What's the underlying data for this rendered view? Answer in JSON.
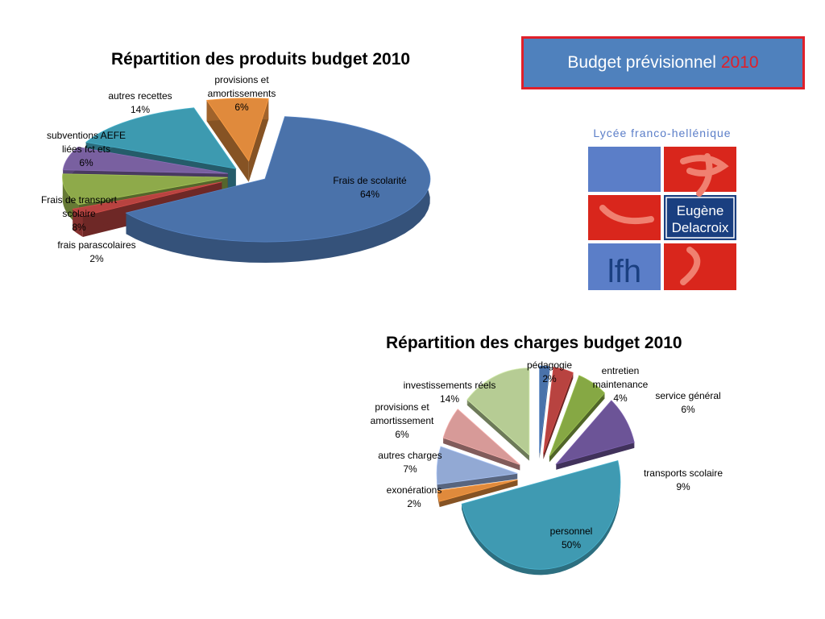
{
  "header": {
    "budget_label": "Budget prévisionnel",
    "budget_year": "2010"
  },
  "logo": {
    "school_name": "Lycée franco-hellénique",
    "name_line1": "Eugène",
    "name_line2": "Delacroix",
    "monogram": "lfh",
    "colors": {
      "blue": "#5b7ec8",
      "red": "#d9261c",
      "navy": "#1a3f80"
    }
  },
  "chart_data": [
    {
      "type": "pie",
      "title": "Répartition des produits budget 2010",
      "series": [
        {
          "name": "Frais de scolarité",
          "value": 64,
          "label": "64%",
          "color": "#4a72aa"
        },
        {
          "name": "frais parascolaires",
          "value": 2,
          "label": "2%",
          "color": "#b84340"
        },
        {
          "name": "Frais de transport scolaire",
          "value": 8,
          "label": "8%",
          "color": "#8eaa4a"
        },
        {
          "name": "subventions AEFE liées fct ets",
          "value": 6,
          "label": "6%",
          "color": "#7960a0"
        },
        {
          "name": "autres recettes",
          "value": 14,
          "label": "14%",
          "color": "#3d9ab0"
        },
        {
          "name": "provisions et amortissements",
          "value": 6,
          "label": "6%",
          "color": "#e08a3c"
        }
      ]
    },
    {
      "type": "pie",
      "title": "Répartition des charges budget 2010",
      "series": [
        {
          "name": "pédagogie",
          "value": 2,
          "label": "2%",
          "color": "#4a72aa"
        },
        {
          "name": "entretien maintenance",
          "value": 4,
          "label": "4%",
          "color": "#b84340"
        },
        {
          "name": "service général",
          "value": 6,
          "label": "6%",
          "color": "#86a844"
        },
        {
          "name": "transports scolaire",
          "value": 9,
          "label": "9%",
          "color": "#6c5497"
        },
        {
          "name": "personnel",
          "value": 50,
          "label": "50%",
          "color": "#3f9ab2"
        },
        {
          "name": "exonérations",
          "value": 2,
          "label": "2%",
          "color": "#e08a3c"
        },
        {
          "name": "autres charges",
          "value": 7,
          "label": "7%",
          "color": "#92a9d4"
        },
        {
          "name": "provisions et amortissement",
          "value": 6,
          "label": "6%",
          "color": "#d79a98"
        },
        {
          "name": "investissements réels",
          "value": 14,
          "label": "14%",
          "color": "#b6cc94"
        }
      ]
    }
  ]
}
